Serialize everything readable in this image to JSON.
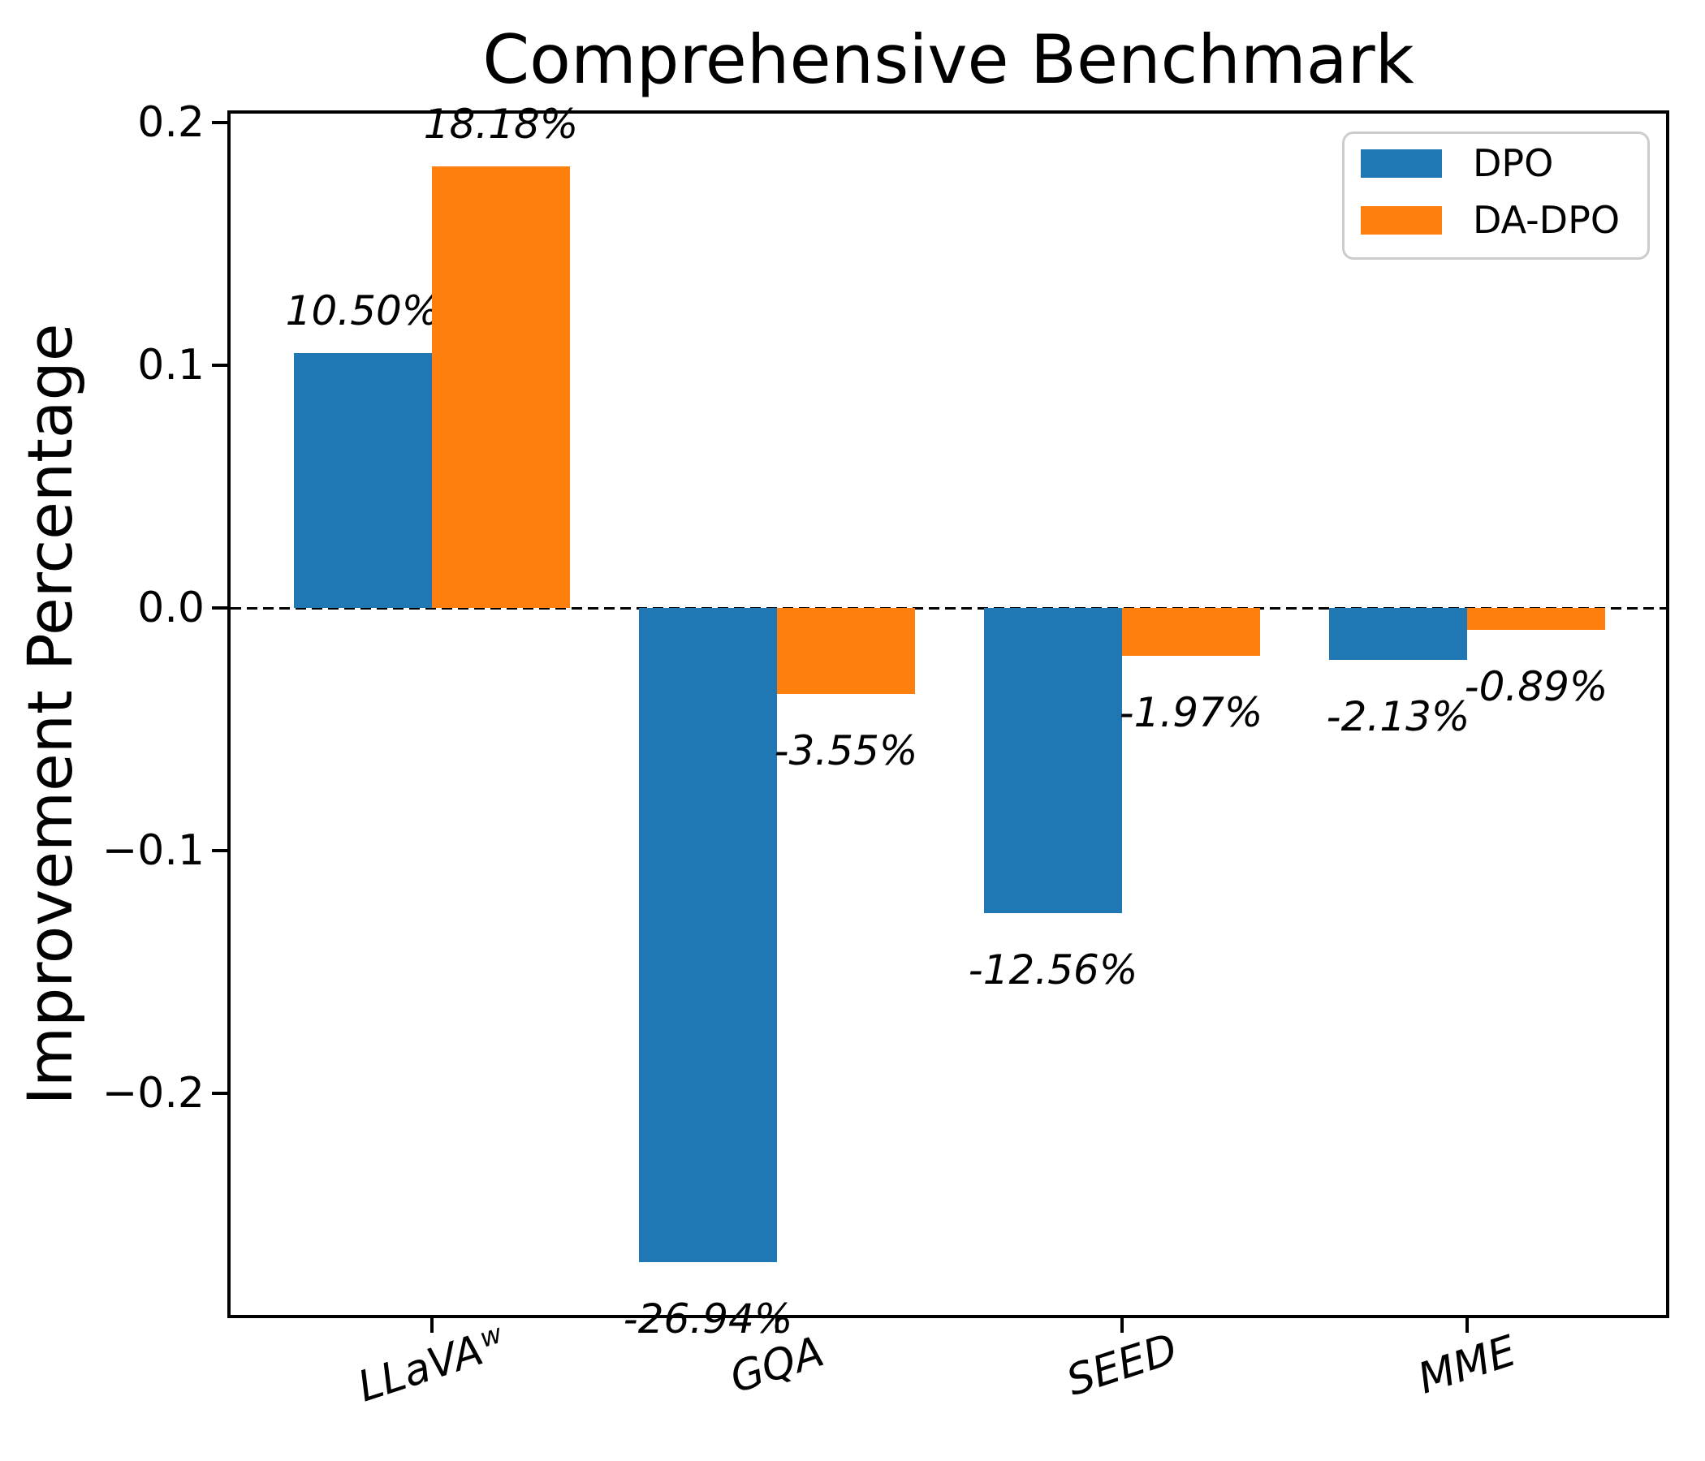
{
  "title": "Comprehensive Benchmark",
  "ylabel": "Improvement Percentage",
  "colors": {
    "dpo_blue": "#1f77b4",
    "dadpo_orange": "#ff7f0e",
    "axis_black": "#000000",
    "legend_border": "#cccccc"
  },
  "legend": {
    "position": "upper right",
    "items": [
      "DPO",
      "DA-DPO"
    ]
  },
  "chart_data": {
    "type": "bar",
    "categories": [
      {
        "label": "LLaVA",
        "sup": "w"
      },
      {
        "label": "GQA",
        "sup": ""
      },
      {
        "label": "SEED",
        "sup": ""
      },
      {
        "label": "MME",
        "sup": ""
      }
    ],
    "series": [
      {
        "name": "DPO",
        "color": "#1f77b4",
        "values": [
          0.105,
          -0.2694,
          -0.1256,
          -0.0213
        ],
        "labels": [
          "10.50%",
          "-26.94%",
          "-12.56%",
          "-2.13%"
        ]
      },
      {
        "name": "DA-DPO",
        "color": "#ff7f0e",
        "values": [
          0.1818,
          -0.0355,
          -0.0197,
          -0.0089
        ],
        "labels": [
          "18.18%",
          "-3.55%",
          "-1.97%",
          "-0.89%"
        ]
      }
    ],
    "title": "Comprehensive Benchmark",
    "xlabel": "",
    "ylabel": "Improvement Percentage",
    "yticks": [
      {
        "label": "0.2",
        "value": 0.2
      },
      {
        "label": "0.1",
        "value": 0.1
      },
      {
        "label": "0.0",
        "value": 0.0
      },
      {
        "label": "−0.1",
        "value": -0.1
      },
      {
        "label": "−0.2",
        "value": -0.2
      }
    ],
    "ylim": [
      -0.2919,
      0.2044
    ],
    "grid": false,
    "zero_line_dashed": true,
    "legend_position": "upper right"
  }
}
